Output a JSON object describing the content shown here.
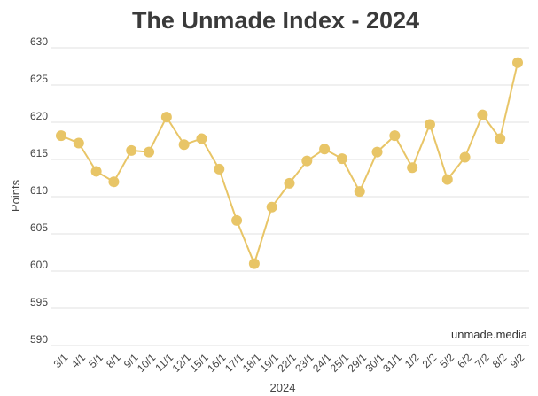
{
  "chart_data": {
    "type": "line",
    "title": "The Unmade Index - 2024",
    "xlabel": "2024",
    "ylabel": "Points",
    "watermark": "unmade.media",
    "ylim": [
      590,
      630
    ],
    "yticks": [
      590,
      595,
      600,
      605,
      610,
      615,
      620,
      625,
      630
    ],
    "grid": true,
    "color": "#e8c567",
    "x": [
      "3/1",
      "4/1",
      "5/1",
      "8/1",
      "9/1",
      "10/1",
      "11/1",
      "12/1",
      "15/1",
      "16/1",
      "17/1",
      "18/1",
      "19/1",
      "22/1",
      "23/1",
      "24/1",
      "25/1",
      "29/1",
      "30/1",
      "31/1",
      "1/2",
      "2/2",
      "5/2",
      "6/2",
      "7/2",
      "8/2",
      "9/2"
    ],
    "values": [
      618.2,
      617.2,
      613.4,
      612.0,
      616.2,
      616.0,
      620.7,
      617.0,
      617.8,
      613.7,
      606.8,
      601.0,
      608.6,
      611.8,
      614.8,
      616.4,
      615.1,
      610.7,
      616.0,
      618.2,
      613.9,
      619.7,
      612.3,
      615.3,
      621.0,
      617.8,
      628.0
    ]
  }
}
